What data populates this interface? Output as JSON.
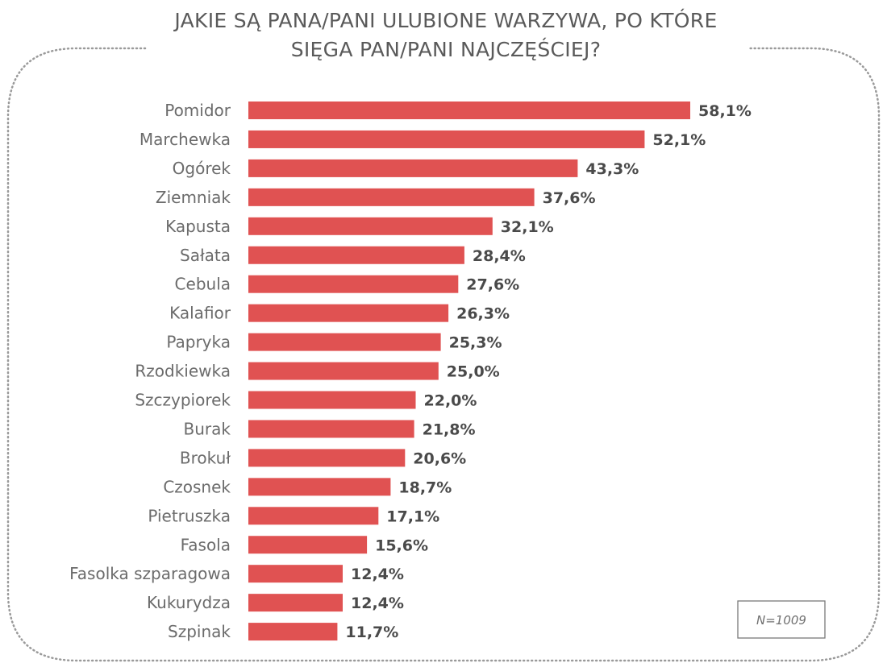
{
  "title_lines": [
    "JAKIE SĄ PANA/PANI ULUBIONE WARZYWA, PO KTÓRE",
    "SIĘGA PAN/PANI NAJCZĘŚCIEJ?"
  ],
  "note": "N=1009",
  "colors": {
    "bar": "#e05252",
    "frame": "#9a9a9a"
  },
  "chart_data": {
    "type": "bar",
    "orientation": "horizontal",
    "title": "JAKIE SĄ PANA/PANI ULUBIONE WARZYWA, PO KTÓRE SIĘGA PAN/PANI NAJCZĘŚCIEJ?",
    "categories": [
      "Pomidor",
      "Marchewka",
      "Ogórek",
      "Ziemniak",
      "Kapusta",
      "Sałata",
      "Cebula",
      "Kalafior",
      "Papryka",
      "Rzodkiewka",
      "Szczypiorek",
      "Burak",
      "Brokuł",
      "Czosnek",
      "Pietruszka",
      "Fasola",
      "Fasolka szparagowa",
      "Kukurydza",
      "Szpinak"
    ],
    "values": [
      58.1,
      52.1,
      43.3,
      37.6,
      32.1,
      28.4,
      27.6,
      26.3,
      25.3,
      25.0,
      22.0,
      21.8,
      20.6,
      18.7,
      17.1,
      15.6,
      12.4,
      12.4,
      11.7
    ],
    "value_labels": [
      "58,1%",
      "52,1%",
      "43,3%",
      "37,6%",
      "32,1%",
      "28,4%",
      "27,6%",
      "26,3%",
      "25,3%",
      "25,0%",
      "22,0%",
      "21,8%",
      "20,6%",
      "18,7%",
      "17,1%",
      "15,6%",
      "12,4%",
      "12,4%",
      "11,7%"
    ],
    "unit": "%",
    "xlim": [
      0,
      58.1
    ],
    "grid": false,
    "legend": "none"
  }
}
